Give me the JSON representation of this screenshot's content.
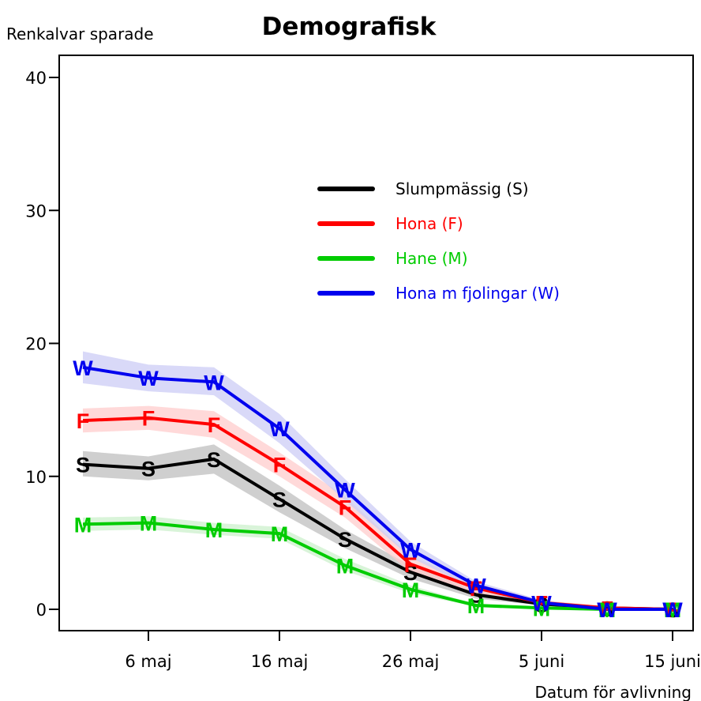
{
  "chart_data": {
    "type": "line",
    "title": "Demografisk",
    "ylabel": "Renkalvar sparade",
    "xlabel": "Datum för avlivning",
    "ylim": [
      0,
      40
    ],
    "y_ticks": [
      0,
      10,
      20,
      30,
      40
    ],
    "x_tick_labels": [
      "6 maj",
      "16 maj",
      "26 maj",
      "5 juni",
      "15 juni"
    ],
    "x_tick_days": [
      6,
      16,
      26,
      36,
      46
    ],
    "xlim": [
      -5.5,
      47.5
    ],
    "legend_position": "top-right",
    "x": [
      1,
      6,
      11,
      16,
      21,
      26,
      31,
      36,
      41,
      46
    ],
    "series": [
      {
        "name": "Slumpmässig (S)",
        "marker": "S",
        "color": "#000000",
        "band_color": "#bfbfbf",
        "values": [
          10.9,
          10.6,
          11.3,
          8.3,
          5.3,
          2.8,
          1.1,
          0.4,
          0.1,
          0.0
        ],
        "lower": [
          10.0,
          9.7,
          10.2,
          7.3,
          4.6,
          2.3,
          0.8,
          0.3,
          0.0,
          0.0
        ],
        "upper": [
          11.9,
          11.5,
          12.4,
          9.3,
          6.0,
          3.3,
          1.4,
          0.5,
          0.2,
          0.1
        ]
      },
      {
        "name": "Hona (F)",
        "marker": "F",
        "color": "#ff0000",
        "band_color": "#ffcccc",
        "values": [
          14.2,
          14.4,
          13.9,
          10.9,
          7.7,
          3.4,
          1.6,
          0.5,
          0.1,
          0.0
        ],
        "lower": [
          13.3,
          13.5,
          12.9,
          10.0,
          6.9,
          2.8,
          1.2,
          0.3,
          0.0,
          0.0
        ],
        "upper": [
          15.1,
          15.3,
          14.9,
          11.8,
          8.5,
          4.0,
          2.0,
          0.7,
          0.2,
          0.1
        ]
      },
      {
        "name": "Hane (M)",
        "marker": "M",
        "color": "#00cc00",
        "band_color": "#ccf0cc",
        "values": [
          6.4,
          6.5,
          6.0,
          5.7,
          3.3,
          1.5,
          0.3,
          0.1,
          0.0,
          0.0
        ],
        "lower": [
          5.9,
          6.0,
          5.6,
          5.3,
          2.9,
          1.2,
          0.2,
          0.0,
          0.0,
          0.0
        ],
        "upper": [
          6.9,
          7.0,
          6.5,
          6.2,
          3.8,
          1.8,
          0.4,
          0.2,
          0.1,
          0.1
        ]
      },
      {
        "name": "Hona m fjolingar (W)",
        "marker": "W",
        "color": "#0000ee",
        "band_color": "#ccccf5",
        "values": [
          18.2,
          17.4,
          17.1,
          13.6,
          9.0,
          4.5,
          1.8,
          0.5,
          0.0,
          0.0
        ],
        "lower": [
          17.0,
          16.4,
          16.1,
          12.5,
          8.2,
          3.9,
          1.5,
          0.3,
          0.0,
          0.0
        ],
        "upper": [
          19.4,
          18.4,
          18.2,
          14.7,
          9.8,
          5.1,
          2.1,
          0.7,
          0.1,
          0.1
        ]
      }
    ]
  }
}
